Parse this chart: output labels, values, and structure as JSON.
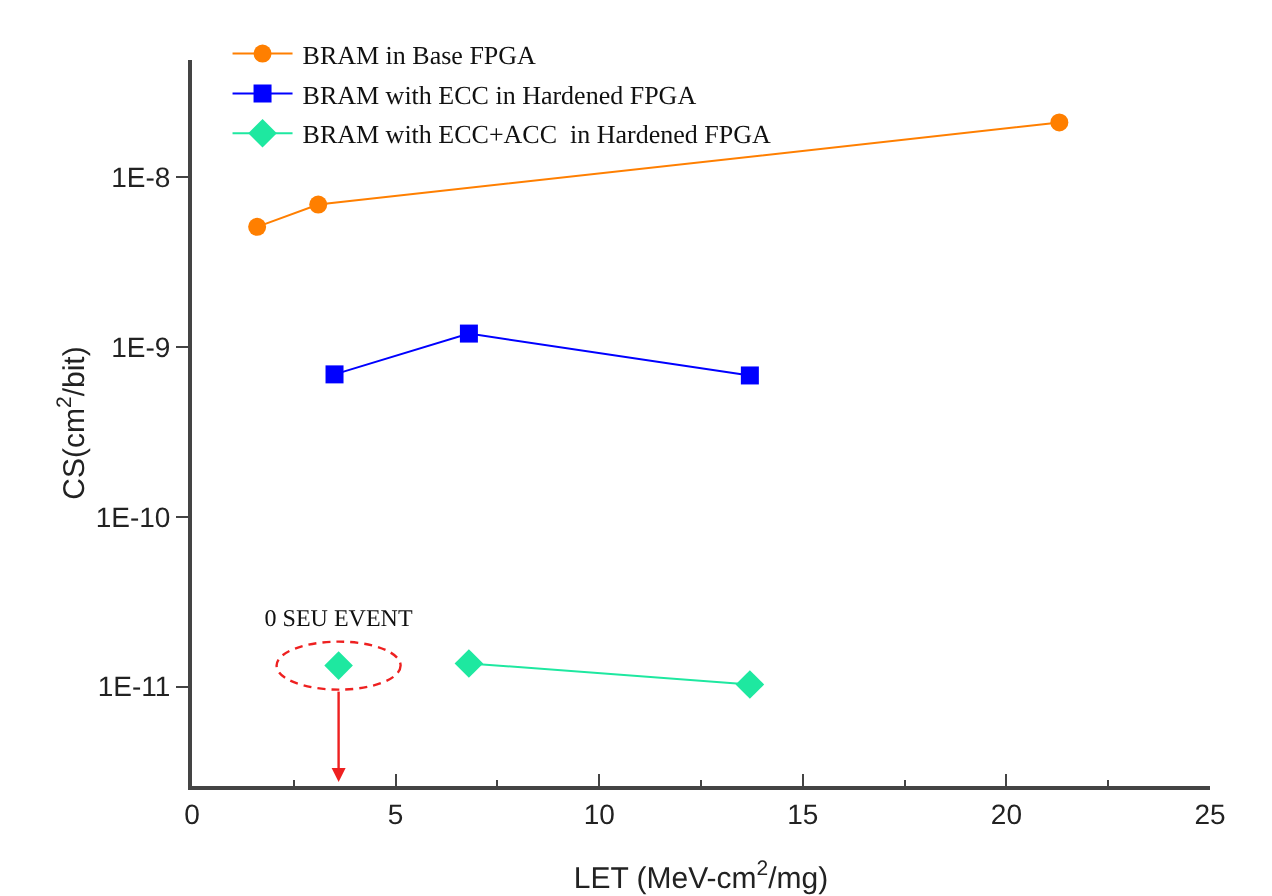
{
  "chart_data": {
    "type": "line",
    "xlabel": "LET (MeV-cm$^{2}$/mg)",
    "ylabel": "CS(cm$^{2}$/bit)",
    "log": "y",
    "xlim": [
      0,
      25
    ],
    "xticks": [
      0,
      5,
      10,
      15,
      20,
      25
    ],
    "ylim": [
      2.6e-12,
      4.9e-08
    ],
    "yticks": [
      {
        "value": 1e-11,
        "label": "1E-11"
      },
      {
        "value": 1e-10,
        "label": "1E-10"
      },
      {
        "value": 1e-09,
        "label": "1E-9"
      },
      {
        "value": 1e-08,
        "label": "1E-8"
      }
    ],
    "grid": false,
    "legend": "top left",
    "line_style": "solid",
    "series": [
      {
        "name": "BRAM in Base FPGA",
        "color": "#ff7f00",
        "marker": "circle",
        "x": [
          1.6,
          3.1,
          21.3
        ],
        "values": [
          5.1e-09,
          6.9e-09,
          2.1e-08
        ]
      },
      {
        "name": "BRAM with ECC in Hardened FPGA",
        "color": "#0000ff",
        "marker": "square",
        "x": [
          3.5,
          6.8,
          13.7
        ],
        "values": [
          6.9e-10,
          1.2e-09,
          6.8e-10
        ]
      },
      {
        "name": "BRAM with ECC+ACC  in Hardened FPGA",
        "color": "#1ee8a0",
        "marker": "diamond",
        "x": [
          6.8,
          13.7
        ],
        "values": [
          1.37e-11,
          1.03e-11
        ]
      },
      {
        "type": "scatter",
        "color": "#1ee8a0",
        "marker": "diamond",
        "x": [
          3.6
        ],
        "values": [
          1.33e-11
        ]
      }
    ],
    "annotations": [
      "0 SEU EVENT"
    ]
  }
}
